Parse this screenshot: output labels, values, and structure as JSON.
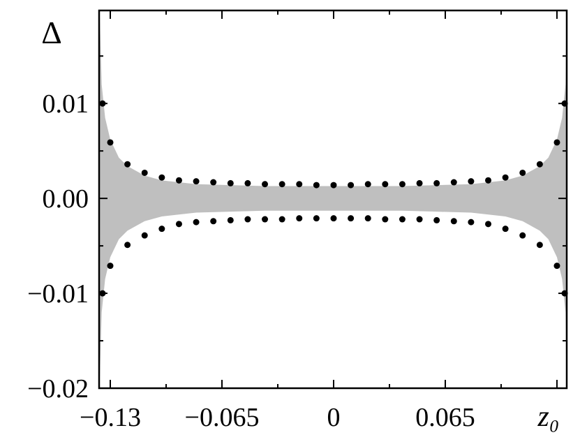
{
  "chart_data": {
    "type": "band_scatter",
    "y_label": "Δ",
    "x_label": "z₀",
    "xlim": [
      -0.1365,
      0.1357
    ],
    "ylim": [
      -0.02,
      0.0198
    ],
    "xticks": [
      {
        "value": -0.13,
        "label": "−0.13"
      },
      {
        "value": -0.065,
        "label": "−0.065"
      },
      0,
      0.065,
      {
        "value": 0.13,
        "label": null
      }
    ],
    "xticks_minor": [
      -0.0975,
      -0.0325,
      0.0325,
      0.0975
    ],
    "yticks": [
      {
        "value": -0.02,
        "label": "−0.02"
      },
      {
        "value": -0.01,
        "label": "−0.01"
      },
      {
        "value": 0,
        "label": "0.00"
      },
      0.01
    ],
    "yticks_minor": [
      -0.015,
      -0.005,
      0.005,
      0.015
    ],
    "band": {
      "color": "#bfbfbf",
      "x": [
        -0.1362,
        -0.135,
        -0.133,
        -0.13,
        -0.125,
        -0.12,
        -0.11,
        -0.1,
        -0.08,
        -0.06,
        -0.04,
        -0.02,
        0,
        0.02,
        0.04,
        0.06,
        0.08,
        0.1,
        0.11,
        0.12,
        0.125,
        0.13,
        0.133,
        0.135,
        0.1355
      ],
      "upper": [
        0.0198,
        0.012,
        0.0085,
        0.0062,
        0.0043,
        0.0034,
        0.0024,
        0.0019,
        0.0015,
        0.0014,
        0.0013,
        0.0013,
        0.0013,
        0.0013,
        0.0013,
        0.0014,
        0.0015,
        0.0019,
        0.0024,
        0.0034,
        0.0043,
        0.0062,
        0.0085,
        0.012,
        0.0198
      ],
      "lower": [
        -0.0195,
        -0.012,
        -0.0085,
        -0.0062,
        -0.0043,
        -0.0034,
        -0.0024,
        -0.0019,
        -0.0015,
        -0.0014,
        -0.0013,
        -0.0013,
        -0.0013,
        -0.0013,
        -0.0013,
        -0.0014,
        -0.0015,
        -0.0019,
        -0.0024,
        -0.0034,
        -0.0043,
        -0.0062,
        -0.0085,
        -0.012,
        -0.0195
      ]
    },
    "points": {
      "color": "#000000",
      "x": [
        -0.1345,
        -0.13,
        -0.12,
        -0.11,
        -0.1,
        -0.09,
        -0.08,
        -0.07,
        -0.06,
        -0.05,
        -0.04,
        -0.03,
        -0.02,
        -0.01,
        0,
        0.01,
        0.02,
        0.03,
        0.04,
        0.05,
        0.06,
        0.07,
        0.08,
        0.09,
        0.1,
        0.11,
        0.12,
        0.13,
        0.1345
      ],
      "upper": [
        0.01,
        0.0059,
        0.0036,
        0.0027,
        0.0022,
        0.0019,
        0.0018,
        0.0017,
        0.0016,
        0.0016,
        0.0015,
        0.0015,
        0.0015,
        0.0014,
        0.0014,
        0.0014,
        0.0015,
        0.0015,
        0.0015,
        0.0016,
        0.0016,
        0.0017,
        0.0018,
        0.0019,
        0.0022,
        0.0027,
        0.0036,
        0.0059,
        0.01
      ],
      "lower": [
        -0.01,
        -0.0071,
        -0.0049,
        -0.0039,
        -0.0032,
        -0.0027,
        -0.0025,
        -0.0024,
        -0.0023,
        -0.0022,
        -0.0022,
        -0.0022,
        -0.0021,
        -0.0021,
        -0.0021,
        -0.0021,
        -0.0021,
        -0.0022,
        -0.0022,
        -0.0022,
        -0.0023,
        -0.0024,
        -0.0025,
        -0.0027,
        -0.0032,
        -0.0039,
        -0.0049,
        -0.0071,
        -0.01
      ]
    }
  }
}
